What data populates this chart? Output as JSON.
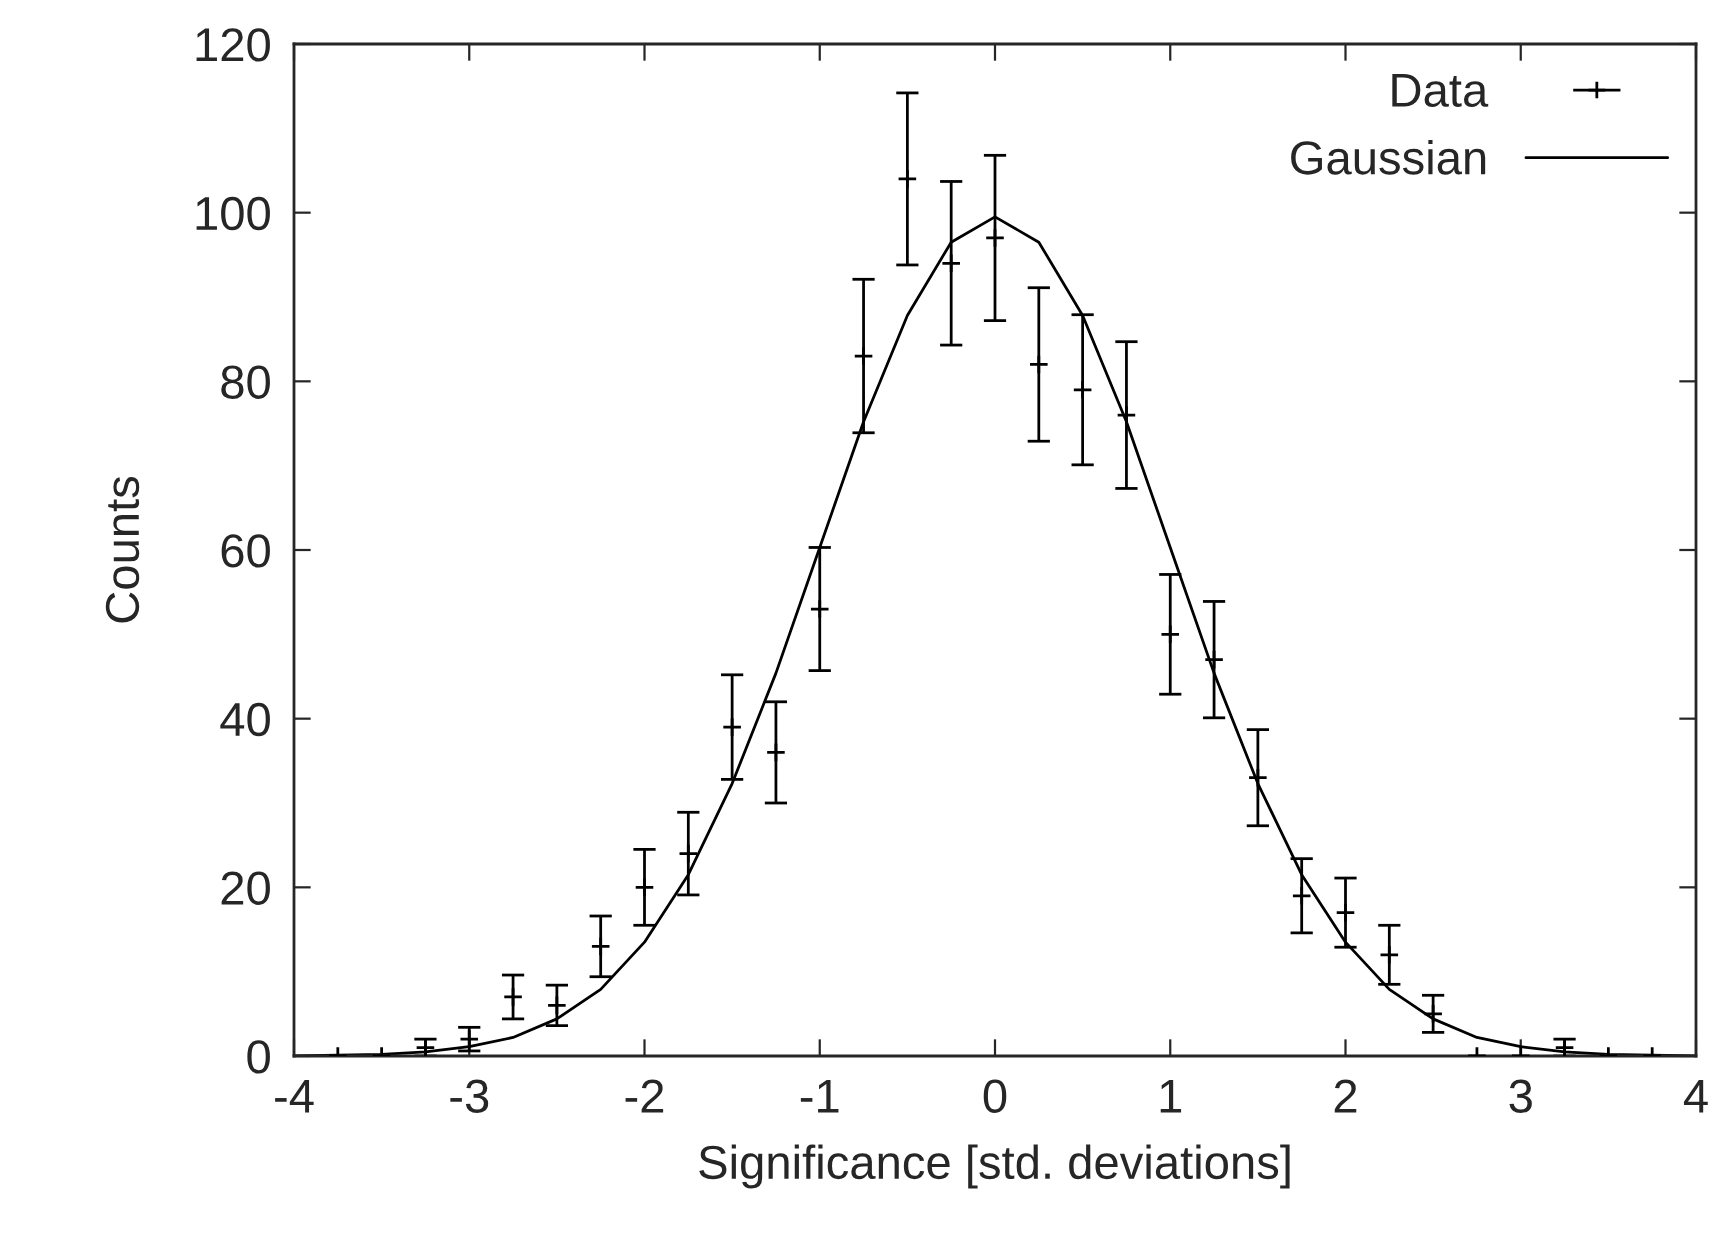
{
  "chart_data": {
    "type": "scatter",
    "xlabel": "Significance [std. deviations]",
    "ylabel": "Counts",
    "xlim": [
      -4,
      4
    ],
    "ylim": [
      0,
      120
    ],
    "xticks": [
      -4,
      -3,
      -2,
      -1,
      0,
      1,
      2,
      3,
      4
    ],
    "yticks": [
      0,
      20,
      40,
      60,
      80,
      100,
      120
    ],
    "grid": false,
    "legend": "top right",
    "series": [
      {
        "name": "Data",
        "color": "#000000",
        "marker": "cross",
        "x": [
          -3.75,
          -3.5,
          -3.25,
          -3,
          -2.75,
          -2.5,
          -2.25,
          -2,
          -1.75,
          -1.5,
          -1.25,
          -1,
          -0.75,
          -0.5,
          -0.25,
          0,
          0.25,
          0.5,
          0.75,
          1,
          1.25,
          1.5,
          1.75,
          2,
          2.25,
          2.5,
          2.75,
          3,
          3.25,
          3.5,
          3.75
        ],
        "values": [
          0,
          0,
          1,
          2,
          7,
          6,
          13,
          20,
          24,
          39,
          36,
          53,
          83,
          104,
          94,
          97,
          82,
          79,
          76,
          50,
          47,
          33,
          19,
          17,
          12,
          5,
          0,
          0,
          1,
          0,
          0
        ],
        "errors": [
          null,
          null,
          1,
          1.4,
          2.6,
          2.4,
          3.6,
          4.5,
          4.9,
          6.2,
          6,
          7.3,
          9.1,
          10.2,
          9.7,
          9.8,
          9.1,
          8.9,
          8.7,
          7.1,
          6.9,
          5.7,
          4.4,
          4.1,
          3.5,
          2.2,
          null,
          null,
          1,
          null,
          null
        ]
      },
      {
        "name": "Gaussian",
        "type": "line",
        "color": "#000000",
        "marker": "none",
        "line_style": "solid",
        "x": [
          -4,
          -3.75,
          -3.5,
          -3.25,
          -3,
          -2.75,
          -2.5,
          -2.25,
          -2,
          -1.75,
          -1.5,
          -1.25,
          -1,
          -0.75,
          -0.5,
          -0.25,
          0,
          0.25,
          0.5,
          0.75,
          1,
          1.25,
          1.5,
          1.75,
          2,
          2.25,
          2.5,
          2.75,
          3,
          3.25,
          3.5,
          3.75,
          4
        ],
        "values": [
          0,
          0.1,
          0.2,
          0.5,
          1.1,
          2.2,
          4.4,
          7.9,
          13.5,
          21.5,
          32.3,
          45.4,
          60.3,
          75.2,
          87.8,
          96.5,
          99.5,
          96.5,
          87.8,
          75.2,
          60.3,
          45.4,
          32.3,
          21.5,
          13.5,
          7.9,
          4.4,
          2.2,
          1.1,
          0.5,
          0.2,
          0.1,
          0
        ]
      }
    ]
  }
}
